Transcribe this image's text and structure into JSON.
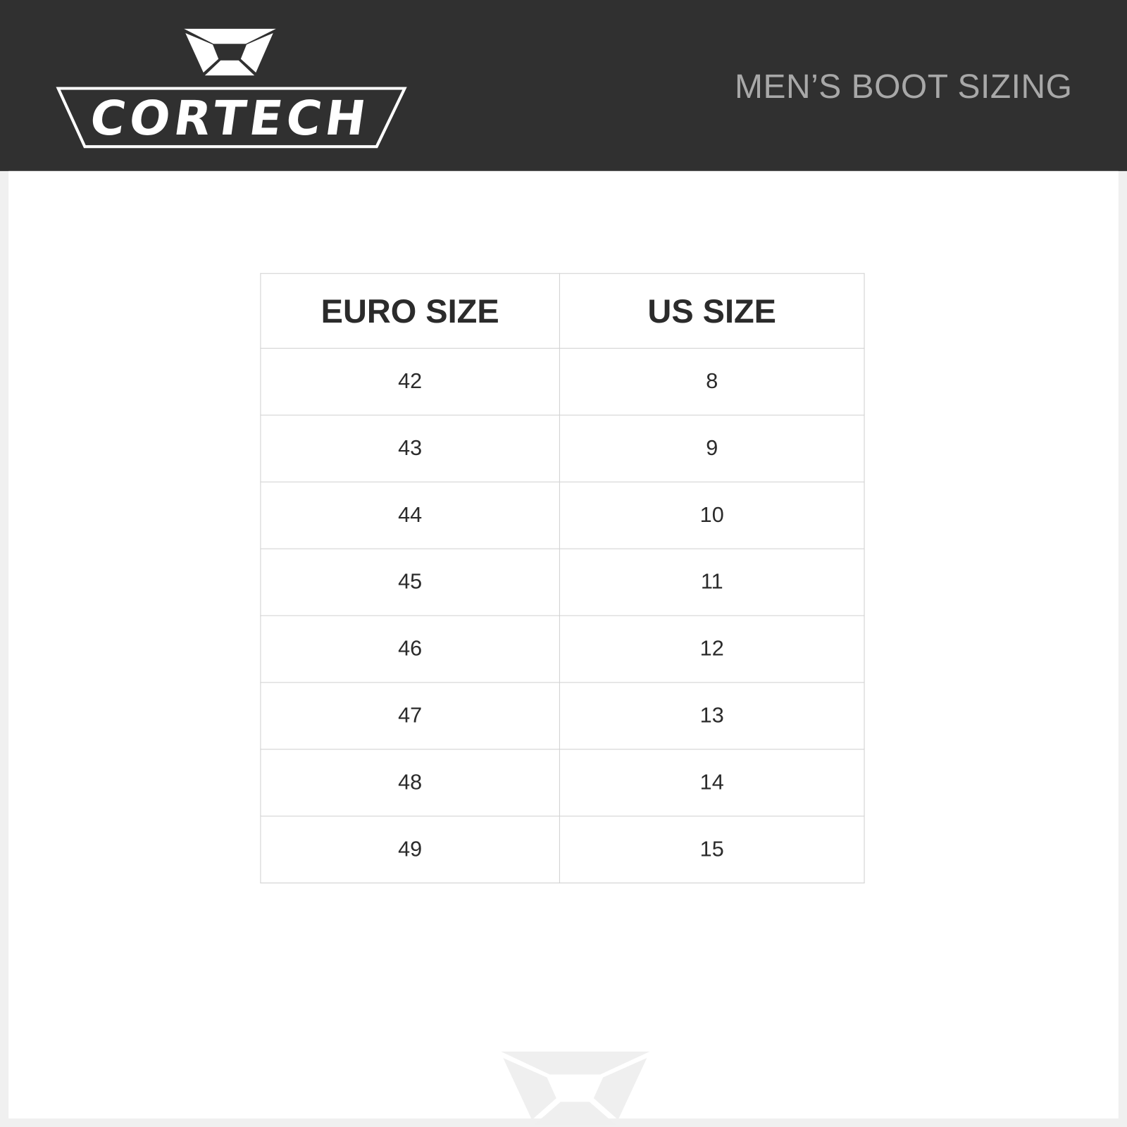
{
  "brand": {
    "name": "CORTECH",
    "logo_color": "#ffffff",
    "header_bg": "#303030",
    "watermark_color": "#efefef"
  },
  "header": {
    "title": "MEN’S BOOT SIZING"
  },
  "table": {
    "headers": [
      "EURO SIZE",
      "US SIZE"
    ],
    "rows": [
      [
        "42",
        "8"
      ],
      [
        "43",
        "9"
      ],
      [
        "44",
        "10"
      ],
      [
        "45",
        "11"
      ],
      [
        "46",
        "12"
      ],
      [
        "47",
        "13"
      ],
      [
        "48",
        "14"
      ],
      [
        "49",
        "15"
      ]
    ]
  }
}
